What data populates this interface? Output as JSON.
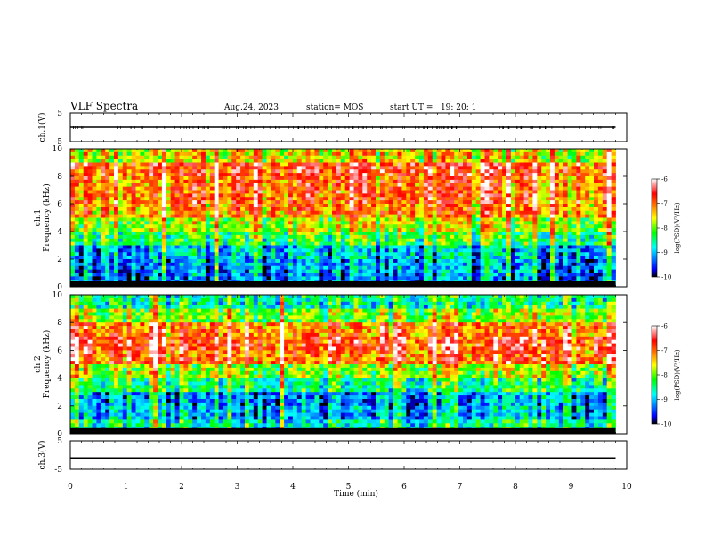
{
  "header": {
    "title": "VLF Spectra",
    "date": "Aug.24, 2023",
    "station": "station= MOS",
    "start_ut": "start UT =   19: 20: 1"
  },
  "colorbar": {
    "label": "log(PSD)(V²/Hz)",
    "ticks": [
      "-6",
      "-7",
      "-8",
      "-9",
      "-10"
    ],
    "range": [
      -10,
      -6
    ],
    "colors": [
      "#000000",
      "#0000ff",
      "#00ffff",
      "#00ff00",
      "#ffff00",
      "#ff8000",
      "#ff0000",
      "#ffffff"
    ]
  },
  "chart_data": [
    {
      "type": "line",
      "name": "ch1-waveform",
      "ylabel": "ch.1(V)",
      "ylim": [
        -5,
        5
      ],
      "yticks": [
        "5",
        "-5"
      ],
      "xlim": [
        0,
        10
      ],
      "x": [
        0,
        9.8
      ],
      "y": [
        0,
        0
      ]
    },
    {
      "type": "heatmap",
      "name": "ch1-spectrogram",
      "ylabel": "ch.1\nFrequency (kHz)",
      "ylim": [
        0,
        10
      ],
      "yticks": [
        "0",
        "2",
        "4",
        "6",
        "8",
        "10"
      ],
      "xlim": [
        0,
        10
      ],
      "x_extent": [
        0,
        9.8
      ],
      "frequency_kHz": [
        0.5,
        1.5,
        2.5,
        3.5,
        4.5,
        5.5,
        6.5,
        7.5,
        8.5,
        9.5
      ],
      "profile_log_psd": [
        -9.3,
        -9.2,
        -9.0,
        -8.3,
        -7.8,
        -7.2,
        -7.0,
        -7.0,
        -6.8,
        -7.6
      ],
      "zlim": [
        -10,
        -6
      ]
    },
    {
      "type": "heatmap",
      "name": "ch2-spectrogram",
      "ylabel": "ch.2\nFrequency (kHz)",
      "ylim": [
        0,
        10
      ],
      "yticks": [
        "0",
        "2",
        "4",
        "6",
        "8",
        "10"
      ],
      "xlim": [
        0,
        10
      ],
      "x_extent": [
        0,
        9.8
      ],
      "frequency_kHz": [
        0.5,
        1.5,
        2.5,
        3.5,
        4.5,
        5.5,
        6.5,
        7.5,
        8.5,
        9.5
      ],
      "profile_log_psd": [
        -8.6,
        -9.0,
        -9.1,
        -8.4,
        -7.8,
        -6.9,
        -6.7,
        -7.0,
        -7.9,
        -8.5
      ],
      "zlim": [
        -10,
        -6
      ]
    },
    {
      "type": "line",
      "name": "ch3-waveform",
      "ylabel": "ch.3(V)",
      "ylim": [
        -5,
        5
      ],
      "yticks": [
        "5",
        "-5"
      ],
      "xlim": [
        0,
        10
      ],
      "x": [
        0,
        9.8
      ],
      "y": [
        -1,
        -1
      ]
    }
  ],
  "xaxis": {
    "label": "Time (min)",
    "ticks": [
      "0",
      "1",
      "2",
      "3",
      "4",
      "5",
      "6",
      "7",
      "8",
      "9",
      "10"
    ]
  }
}
